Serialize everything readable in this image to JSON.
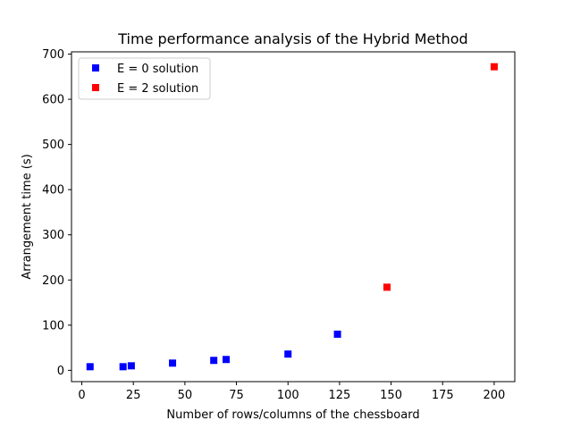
{
  "chart_data": {
    "type": "scatter",
    "title": "Time performance analysis of the Hybrid Method",
    "xlabel": "Number of rows/columns of the chessboard",
    "ylabel": "Arrangement time (s)",
    "xlim": [
      -5,
      210
    ],
    "ylim": [
      -25,
      705
    ],
    "xticks": [
      0,
      25,
      50,
      75,
      100,
      125,
      150,
      175,
      200
    ],
    "yticks": [
      0,
      100,
      200,
      300,
      400,
      500,
      600,
      700
    ],
    "grid": false,
    "legend_position": "top-left",
    "series": [
      {
        "name": "E = 0 solution",
        "color": "#0000ff",
        "marker": "square",
        "points": [
          {
            "x": 4,
            "y": 8
          },
          {
            "x": 20,
            "y": 8
          },
          {
            "x": 24,
            "y": 10
          },
          {
            "x": 44,
            "y": 16
          },
          {
            "x": 64,
            "y": 22
          },
          {
            "x": 70,
            "y": 24
          },
          {
            "x": 100,
            "y": 36
          },
          {
            "x": 124,
            "y": 80
          }
        ]
      },
      {
        "name": "E = 2 solution",
        "color": "#ff0000",
        "marker": "square",
        "points": [
          {
            "x": 148,
            "y": 184
          },
          {
            "x": 200,
            "y": 672
          }
        ]
      }
    ]
  }
}
